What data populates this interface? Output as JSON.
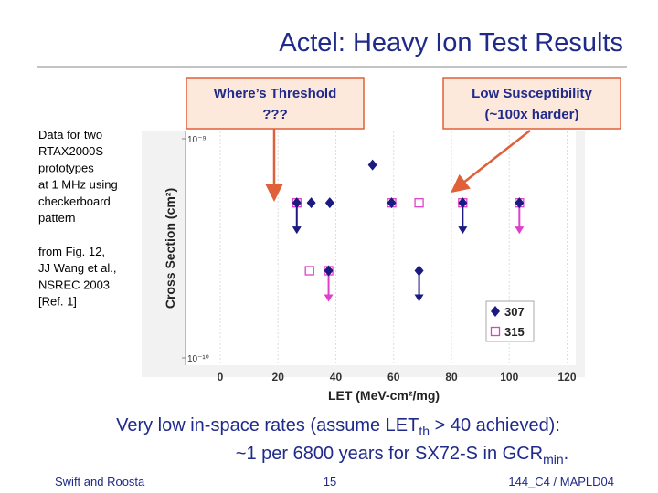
{
  "title": "Actel: Heavy Ion Test Results",
  "notes": {
    "block1": [
      "Data for two",
      "RTAX2000S",
      "prototypes",
      "at 1 MHz using",
      "checkerboard",
      "pattern"
    ],
    "block2": [
      "from Fig. 12,",
      "JJ Wang et al.,",
      "NSREC 2003",
      "[Ref. 1]"
    ]
  },
  "callouts": [
    {
      "lines": [
        "Where’s Threshold",
        "???"
      ]
    },
    {
      "lines": [
        "Low Susceptibility",
        "(~100x harder)"
      ]
    }
  ],
  "summary": {
    "line1": [
      "Very low in-space rates  (assume LET",
      "th",
      " > 40 achieved):"
    ],
    "line2": [
      "~1 per 6800 years for SX72-S in GCR",
      "min",
      "."
    ]
  },
  "footer": {
    "left": "Swift and Roosta",
    "center": "15",
    "right": "144_C4 / MAPLD04"
  },
  "chart_data": {
    "type": "scatter",
    "x_label": "LET (MeV-cm²/mg)",
    "y_label": "Cross Section (cm²)",
    "xlim": [
      -12,
      123
    ],
    "xticks": [
      0,
      20,
      40,
      60,
      80,
      100,
      120
    ],
    "ylim": [
      1e-10,
      1e-09
    ],
    "yticks": [
      {
        "value": 1e-09,
        "label": "10⁻⁹"
      },
      {
        "value": 1e-10,
        "label": "10⁻¹⁰"
      }
    ],
    "y_scale": "log",
    "grid": true,
    "legend": "lower right",
    "series": [
      {
        "name": "307",
        "color": "#1a1a80",
        "marker": "diamond",
        "x": [
          26.5,
          31.5,
          37.9,
          59.3,
          83.9,
          103.5,
          37.5,
          68.8,
          52.7
        ],
        "values": [
          5.1e-10,
          5.1e-10,
          5.1e-10,
          5.1e-10,
          5.1e-10,
          5.1e-10,
          2.5e-10,
          2.5e-10,
          7.6e-10
        ],
        "upper_limit": [
          true,
          false,
          false,
          false,
          true,
          false,
          false,
          true,
          false
        ]
      },
      {
        "name": "315",
        "color": "#e040c8",
        "marker": "square",
        "x": [
          26.5,
          59.3,
          68.8,
          83.9,
          103.5,
          30.9,
          37.5
        ],
        "values": [
          5.1e-10,
          5.1e-10,
          5.1e-10,
          5.1e-10,
          5.1e-10,
          2.5e-10,
          2.5e-10
        ],
        "upper_limit": [
          false,
          false,
          false,
          false,
          true,
          false,
          true
        ]
      }
    ]
  }
}
